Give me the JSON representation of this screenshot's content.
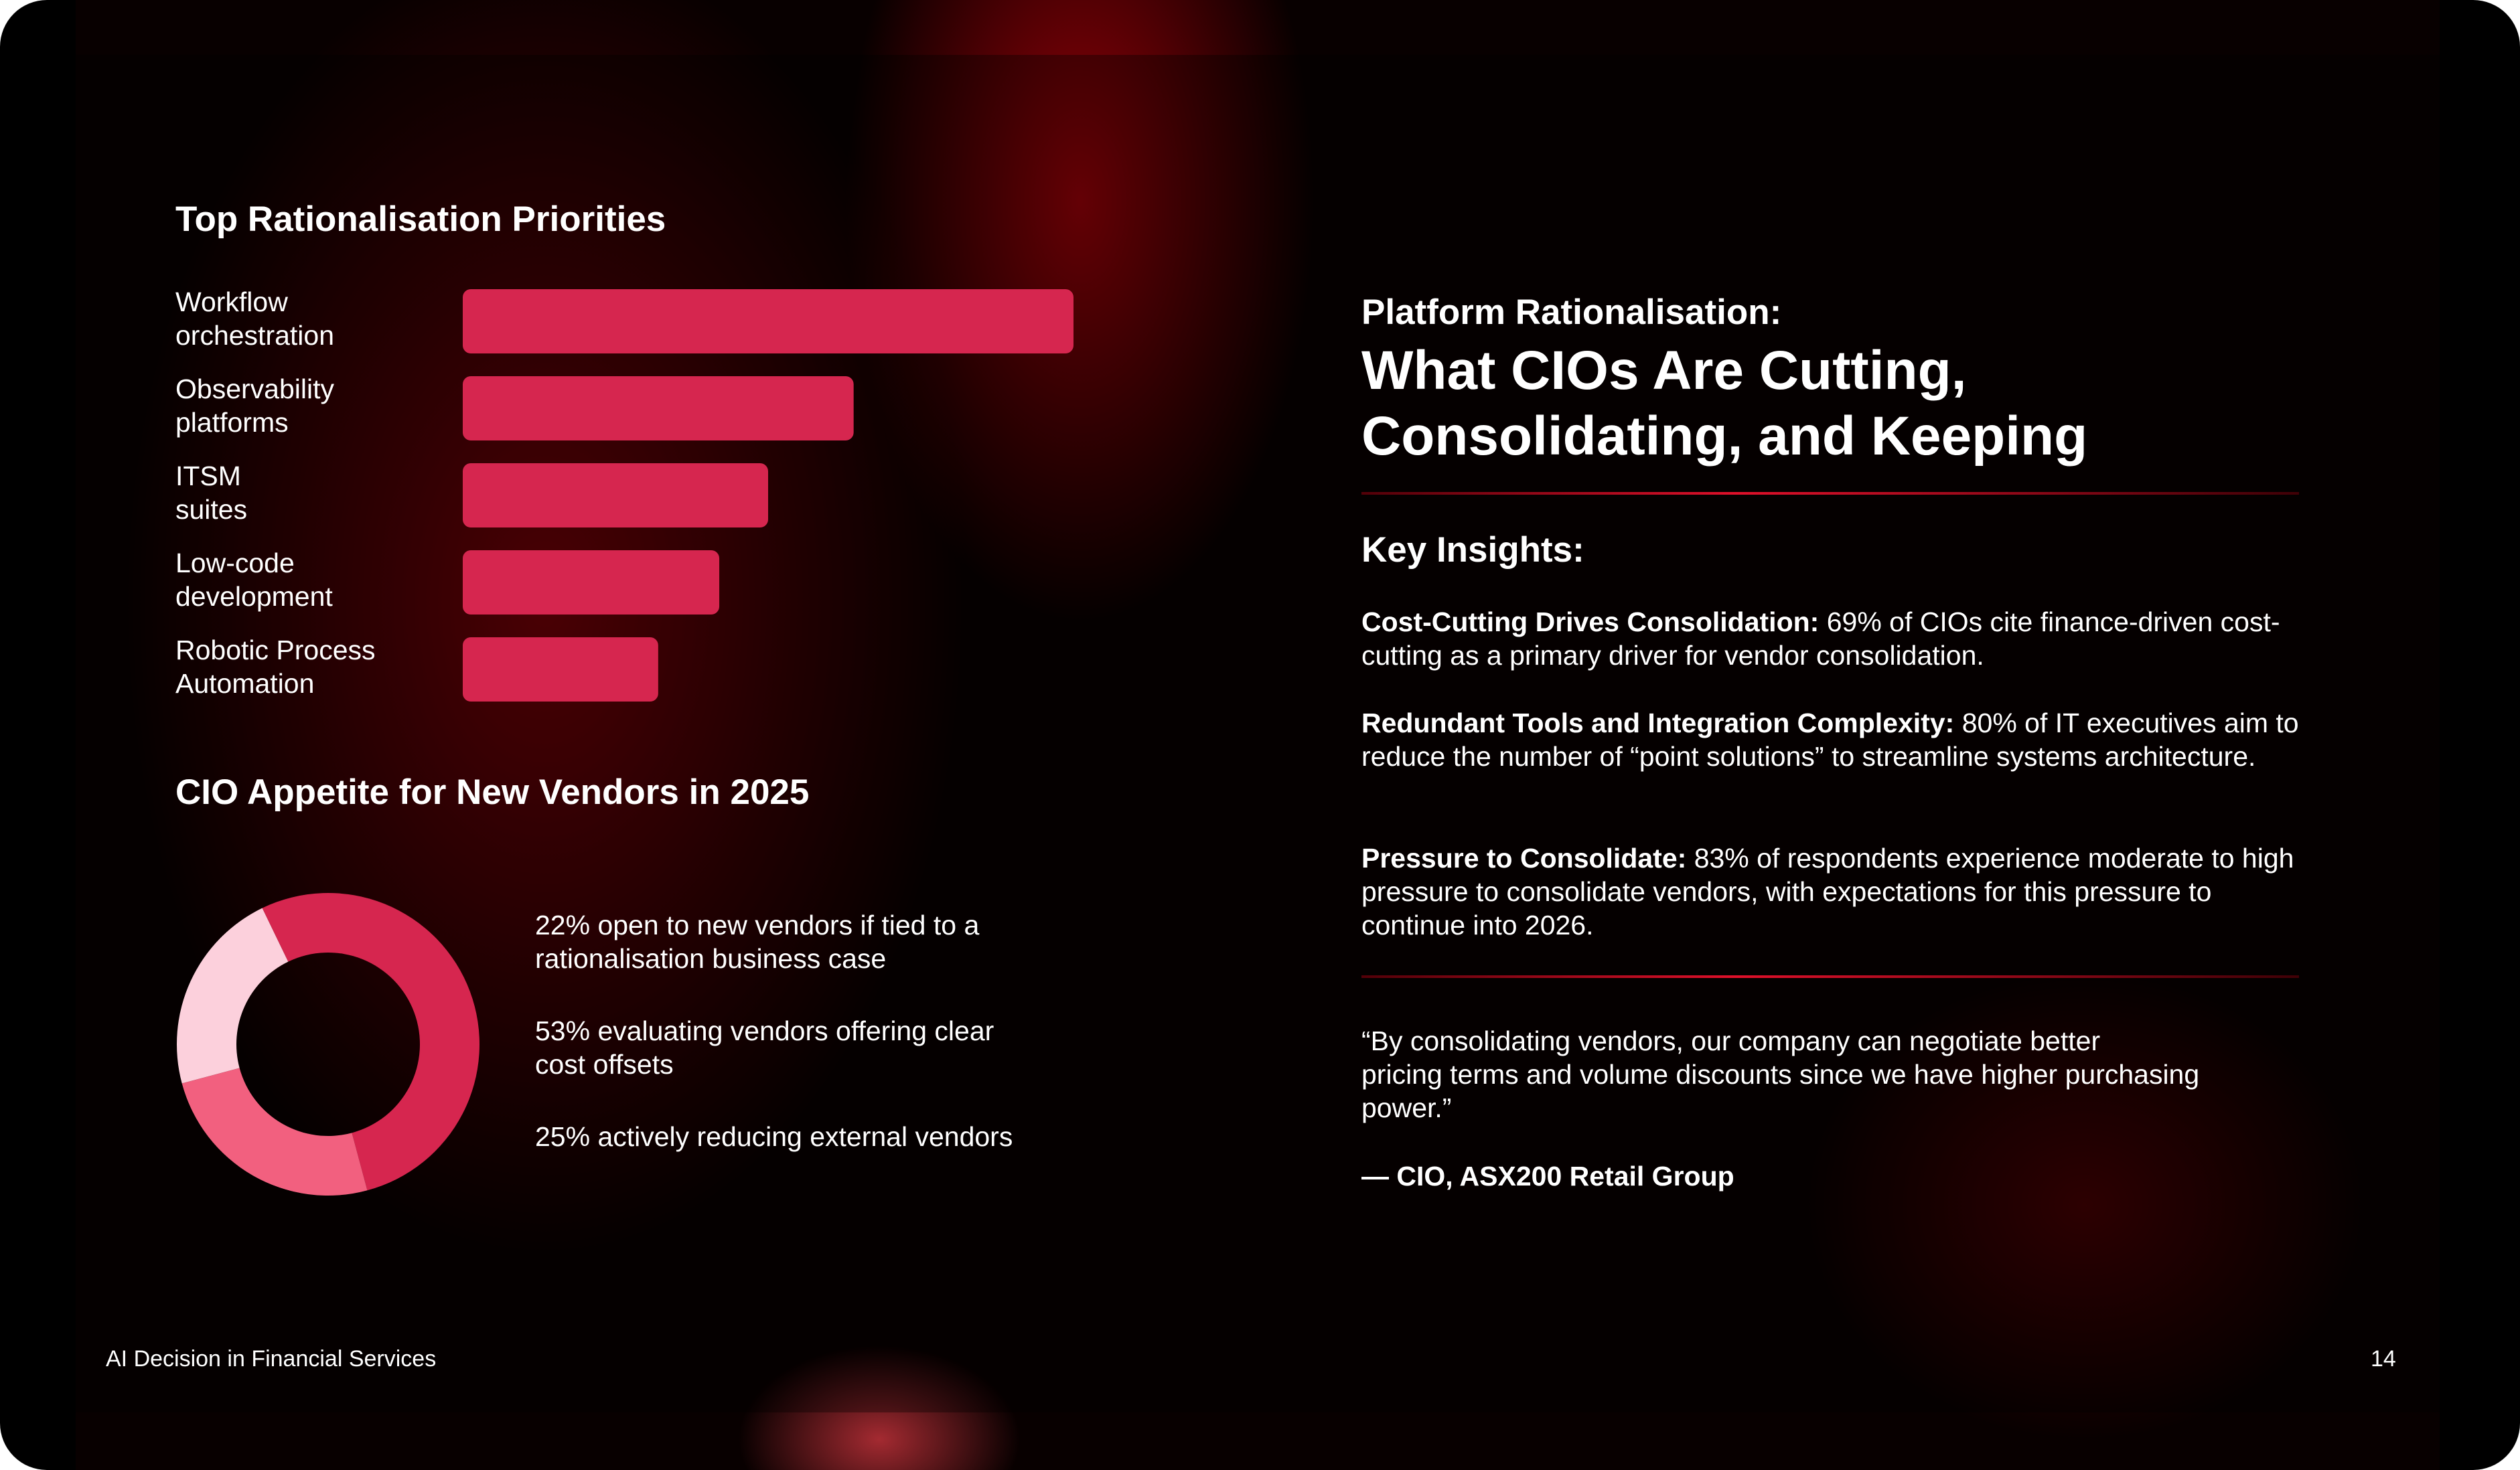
{
  "chart_data": [
    {
      "type": "bar",
      "orientation": "horizontal",
      "title": "Top Rationalisation Priorities",
      "categories": [
        "Workflow\norchestration",
        "Observability\nplatforms",
        "ITSM\nsuites",
        "Low-code\ndevelopment",
        "Robotic Process\nAutomation"
      ],
      "values": [
        100,
        64,
        50,
        42,
        32
      ],
      "color": "#d6264f"
    },
    {
      "type": "donut",
      "title": "CIO Appetite for New Vendors in 2025",
      "categories": [
        "22% open to new vendors if tied to a rationalisation business case",
        "53% evaluating vendors offering clear cost offsets",
        "25% actively reducing external vendors"
      ],
      "values": [
        22,
        53,
        25
      ],
      "colors": [
        "#fcd0dc",
        "#d6264f",
        "#f2607f"
      ]
    }
  ],
  "slide": {
    "kicker": "Platform Rationalisation:",
    "headline": "What CIOs Are Cutting,\nConsolidating, and Keeping",
    "insights_title": "Key Insights:",
    "insights": [
      {
        "lead": "Cost-Cutting Drives Consolidation:",
        "text": "69% of CIOs cite finance-driven cost-cutting as a primary driver for vendor consolidation."
      },
      {
        "lead": "Redundant Tools and Integration Complexity:",
        "text": "80% of IT executives aim to reduce the number of “point solutions” to streamline systems architecture."
      },
      {
        "lead": "Pressure to Consolidate:",
        "text": "83% of respondents experience moderate to high pressure to consolidate vendors, with expectations for this pressure to continue into 2026."
      }
    ],
    "quote": "“By consolidating vendors, our company can negotiate better\npricing terms and volume discounts since we have higher purchasing\npower.”",
    "attribution": "— CIO, ASX200 Retail Group",
    "footer": "AI Decision in Financial Services",
    "page_number": "14"
  }
}
